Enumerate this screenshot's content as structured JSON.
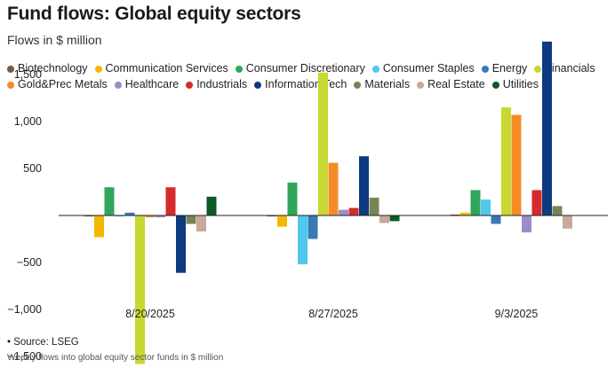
{
  "chart_data": {
    "type": "bar",
    "title": "Fund flows: Global equity sectors",
    "subtitle": "Flows in $ million",
    "categories": [
      "8/20/2025",
      "8/27/2025",
      "9/3/2025"
    ],
    "ylim": [
      -1700,
      1950
    ],
    "yticks": [
      1500,
      1000,
      500,
      -500,
      -1000,
      -1500
    ],
    "ytick_labels": [
      "1,500",
      "1,000",
      "500",
      "−500",
      "−1,000",
      "−1,500"
    ],
    "grid": false,
    "legend_position": "top",
    "series": [
      {
        "name": "Biotechnology",
        "color": "#7a5a44",
        "values": [
          -10,
          -10,
          10
        ]
      },
      {
        "name": "Communication Services",
        "color": "#f2b800",
        "values": [
          -230,
          -120,
          30
        ]
      },
      {
        "name": "Consumer Discretionary",
        "color": "#30a65a",
        "values": [
          300,
          350,
          270
        ]
      },
      {
        "name": "Consumer Staples",
        "color": "#4fc8ec",
        "values": [
          -10,
          -520,
          170
        ]
      },
      {
        "name": "Energy",
        "color": "#3a78b5",
        "values": [
          30,
          -250,
          -90
        ]
      },
      {
        "name": "Financials",
        "color": "#c8d832",
        "values": [
          -1580,
          1520,
          1150
        ]
      },
      {
        "name": "Gold&Prec Metals",
        "color": "#f58b26",
        "values": [
          -20,
          560,
          1070
        ]
      },
      {
        "name": "Healthcare",
        "color": "#9a8cc8",
        "values": [
          -20,
          60,
          -180
        ]
      },
      {
        "name": "Industrials",
        "color": "#d62b2b",
        "values": [
          300,
          80,
          270
        ]
      },
      {
        "name": "Information Tech",
        "color": "#0d3a80",
        "values": [
          -610,
          630,
          1850
        ]
      },
      {
        "name": "Materials",
        "color": "#778453",
        "values": [
          -90,
          190,
          100
        ]
      },
      {
        "name": "Real Estate",
        "color": "#c9a99a",
        "values": [
          -170,
          -80,
          -140
        ]
      },
      {
        "name": "Utilities",
        "color": "#0b5a24",
        "values": [
          200,
          -60,
          0
        ]
      }
    ]
  },
  "footer": {
    "source": "• Source: LSEG",
    "note": "Weekly flows into global equity sector funds in $ million"
  }
}
